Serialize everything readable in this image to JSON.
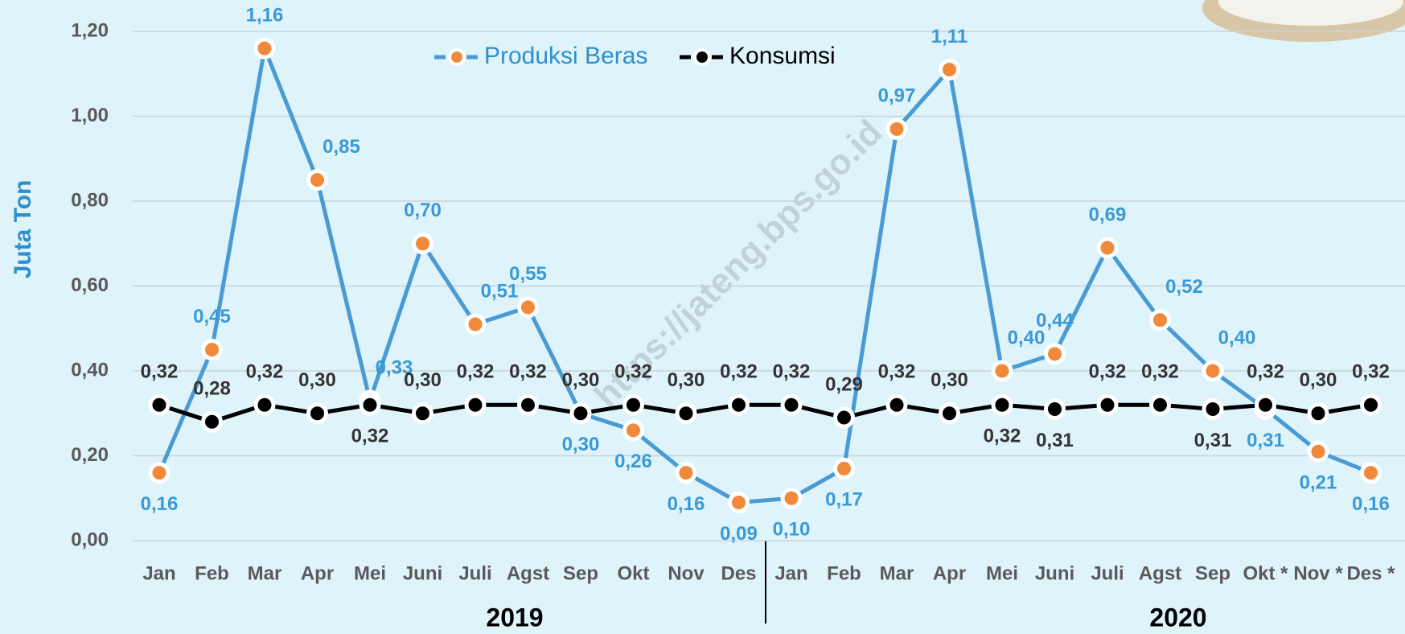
{
  "chart_data": {
    "type": "line",
    "y_axis_label": "Juta Ton",
    "watermark": "https://jateng.bps.go.id",
    "categories": [
      "Jan",
      "Feb",
      "Mar",
      "Apr",
      "Mei",
      "Juni",
      "Juli",
      "Agst",
      "Sep",
      "Okt",
      "Nov",
      "Des",
      "Jan",
      "Feb",
      "Mar",
      "Apr",
      "Mei",
      "Juni",
      "Juli",
      "Agst",
      "Sep",
      "Okt *",
      "Nov *",
      "Des *"
    ],
    "group_labels": [
      "2019",
      "2020"
    ],
    "series": [
      {
        "name": "Produksi Beras",
        "color": "#4a9ad4",
        "marker_color": "#f08a3a",
        "values": [
          0.16,
          0.45,
          1.16,
          0.85,
          0.33,
          0.7,
          0.51,
          0.55,
          0.3,
          0.26,
          0.16,
          0.09,
          0.1,
          0.17,
          0.97,
          1.11,
          0.4,
          0.44,
          0.69,
          0.52,
          0.4,
          0.31,
          0.21,
          0.16
        ],
        "value_labels": [
          "0,16",
          "0,45",
          "1,16",
          "0,85",
          "0,33",
          "0,70",
          "0,51",
          "0,55",
          "0,30",
          "0,26",
          "0,16",
          "0,09",
          "0,10",
          "0,17",
          "0,97",
          "1,11",
          "0,40",
          "0,44",
          "0,69",
          "0,52",
          "0,40",
          "0,31",
          "0,21",
          "0,16"
        ]
      },
      {
        "name": "Konsumsi",
        "color": "#000000",
        "marker_color": "#000000",
        "values": [
          0.32,
          0.28,
          0.32,
          0.3,
          0.32,
          0.3,
          0.32,
          0.32,
          0.3,
          0.32,
          0.3,
          0.32,
          0.32,
          0.29,
          0.32,
          0.3,
          0.32,
          0.31,
          0.32,
          0.32,
          0.31,
          0.32,
          0.3,
          0.32
        ],
        "value_labels": [
          "0,32",
          "0,28",
          "0,32",
          "0,30",
          "0,32",
          "0,30",
          "0,32",
          "0,32",
          "0,30",
          "0,32",
          "0,30",
          "0,32",
          "0,32",
          "0,29",
          "0,32",
          "0,30",
          "0,32",
          "0,31",
          "0,32",
          "0,32",
          "0,31",
          "0,32",
          "0,30",
          "0,32"
        ]
      }
    ],
    "ylim": [
      0,
      1.2
    ],
    "yticks": [
      {
        "value": 0,
        "label": "0,00"
      },
      {
        "value": 0.2,
        "label": "0,20"
      },
      {
        "value": 0.4,
        "label": "0,40"
      },
      {
        "value": 0.6,
        "label": "0,60"
      },
      {
        "value": 0.8,
        "label": "0,80"
      },
      {
        "value": 1.0,
        "label": "1,00"
      },
      {
        "value": 1.2,
        "label": "1,20"
      }
    ],
    "grid": true
  }
}
